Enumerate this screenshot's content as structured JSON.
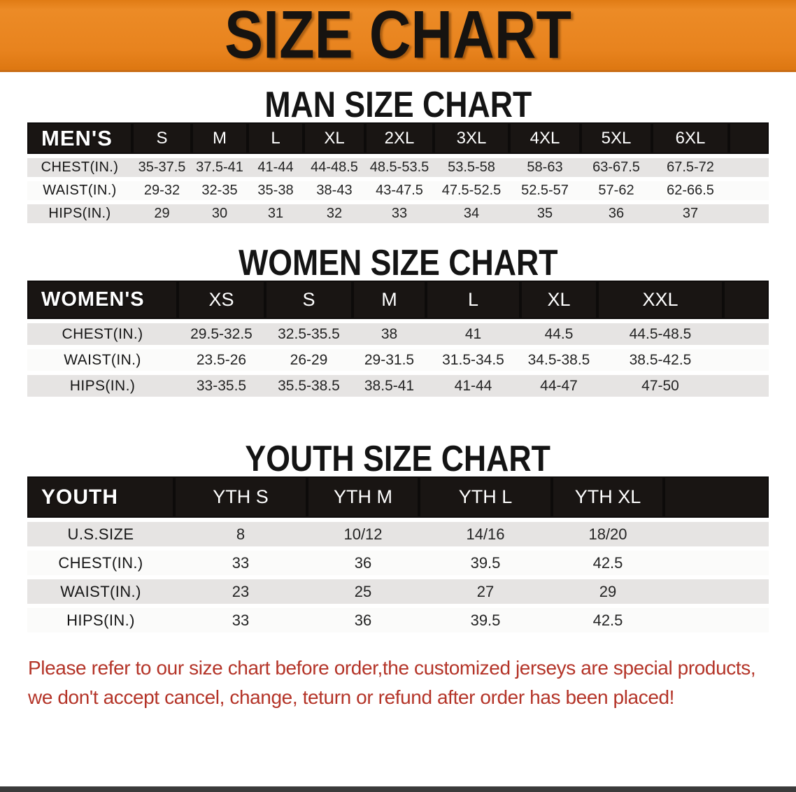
{
  "banner": {
    "title": "SIZE CHART"
  },
  "sections": [
    {
      "title": "MAN SIZE CHART",
      "table": {
        "header_label": "MEN'S",
        "columns": [
          "S",
          "M",
          "L",
          "XL",
          "2XL",
          "3XL",
          "4XL",
          "5XL",
          "6XL"
        ],
        "rows": [
          {
            "label": "CHEST(IN.)",
            "values": [
              "35-37.5",
              "37.5-41",
              "41-44",
              "44-48.5",
              "48.5-53.5",
              "53.5-58",
              "58-63",
              "63-67.5",
              "67.5-72"
            ]
          },
          {
            "label": "WAIST(IN.)",
            "values": [
              "29-32",
              "32-35",
              "35-38",
              "38-43",
              "43-47.5",
              "47.5-52.5",
              "52.5-57",
              "57-62",
              "62-66.5"
            ]
          },
          {
            "label": "HIPS(IN.)",
            "values": [
              "29",
              "30",
              "31",
              "32",
              "33",
              "34",
              "35",
              "36",
              "37"
            ]
          }
        ]
      }
    },
    {
      "title": "WOMEN SIZE CHART",
      "table": {
        "header_label": "WOMEN'S",
        "columns": [
          "XS",
          "S",
          "M",
          "L",
          "XL",
          "XXL"
        ],
        "rows": [
          {
            "label": "CHEST(IN.)",
            "values": [
              "29.5-32.5",
              "32.5-35.5",
              "38",
              "41",
              "44.5",
              "44.5-48.5"
            ]
          },
          {
            "label": "WAIST(IN.)",
            "values": [
              "23.5-26",
              "26-29",
              "29-31.5",
              "31.5-34.5",
              "34.5-38.5",
              "38.5-42.5"
            ]
          },
          {
            "label": "HIPS(IN.)",
            "values": [
              "33-35.5",
              "35.5-38.5",
              "38.5-41",
              "41-44",
              "44-47",
              "47-50"
            ]
          }
        ]
      }
    },
    {
      "title": "YOUTH SIZE CHART",
      "table": {
        "header_label": "YOUTH",
        "columns": [
          "YTH S",
          "YTH M",
          "YTH L",
          "YTH XL"
        ],
        "rows": [
          {
            "label": "U.S.SIZE",
            "values": [
              "8",
              "10/12",
              "14/16",
              "18/20"
            ]
          },
          {
            "label": "CHEST(IN.)",
            "values": [
              "33",
              "36",
              "39.5",
              "42.5"
            ]
          },
          {
            "label": "WAIST(IN.)",
            "values": [
              "23",
              "25",
              "27",
              "29"
            ]
          },
          {
            "label": "HIPS(IN.)",
            "values": [
              "33",
              "36",
              "39.5",
              "42.5"
            ]
          }
        ]
      }
    }
  ],
  "disclaimer": {
    "line1": "Please refer to our size chart before order,the customized jerseys are special products,",
    "line2": "we don't accept cancel, change, teturn or refund after order has been placed!"
  },
  "colors": {
    "banner_orange": "#E8831E",
    "table_header_black": "#191513",
    "row_gray": "#E6E4E3",
    "disclaimer_red": "#B43428"
  }
}
